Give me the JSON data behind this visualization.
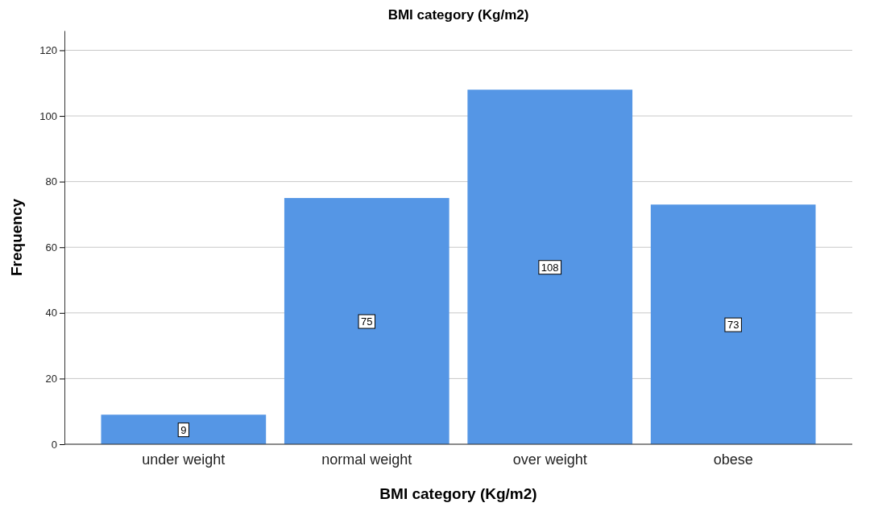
{
  "chart_data": {
    "type": "bar",
    "title": "BMI category (Kg/m2)",
    "xlabel": "BMI category (Kg/m2)",
    "ylabel": "Frequency",
    "categories": [
      "under weight",
      "normal weight",
      "over weight",
      "obese"
    ],
    "values": [
      9,
      75,
      108,
      73
    ],
    "color": "#5596e5",
    "ylim": [
      0,
      126
    ],
    "yticks": [
      0,
      20,
      40,
      60,
      80,
      100,
      120
    ],
    "grid": "y",
    "data_labels": true
  }
}
